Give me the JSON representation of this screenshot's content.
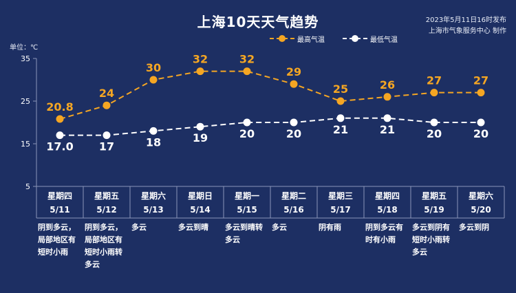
{
  "title": "上海10天天气趋势",
  "publish": {
    "line1": "2023年5月11日16时发布",
    "line2": "上海市气象服务中心 制作"
  },
  "unit": "单位：℃",
  "legend": {
    "high": "最高气温",
    "low": "最低气温"
  },
  "colors": {
    "background": "#1d2f63",
    "high": "#f5a623",
    "low": "#ffffff",
    "grid": "#8a96b8"
  },
  "chart_data": {
    "type": "line",
    "title": "上海10天天气趋势",
    "ylabel": "单位：℃",
    "ylim": [
      5,
      35
    ],
    "yticks": [
      5,
      15,
      25,
      35
    ],
    "grid": false,
    "legend_position": "top-right",
    "categories": [
      "5/11",
      "5/12",
      "5/13",
      "5/14",
      "5/15",
      "5/16",
      "5/17",
      "5/18",
      "5/19",
      "5/20"
    ],
    "series": [
      {
        "name": "最高气温",
        "values": [
          20.8,
          24,
          30,
          32,
          32,
          29,
          25,
          26,
          27,
          27
        ],
        "labels": [
          "20.8",
          "24",
          "30",
          "32",
          "32",
          "29",
          "25",
          "26",
          "27",
          "27"
        ]
      },
      {
        "name": "最低气温",
        "values": [
          17.0,
          17,
          18,
          19,
          20,
          20,
          21,
          21,
          20,
          20
        ],
        "labels": [
          "17.0",
          "17",
          "18",
          "19",
          "20",
          "20",
          "21",
          "21",
          "20",
          "20"
        ]
      }
    ]
  },
  "days": [
    {
      "weekday": "星期四",
      "date": "5/11",
      "weather": [
        "阴到多云，",
        "局部地区有",
        "短时小雨"
      ]
    },
    {
      "weekday": "星期五",
      "date": "5/12",
      "weather": [
        "阴到多云，",
        "局部地区有",
        "短时小雨转",
        "多云"
      ]
    },
    {
      "weekday": "星期六",
      "date": "5/13",
      "weather": [
        "多云"
      ]
    },
    {
      "weekday": "星期日",
      "date": "5/14",
      "weather": [
        "多云到晴"
      ]
    },
    {
      "weekday": "星期一",
      "date": "5/15",
      "weather": [
        "多云到晴转",
        "多云"
      ]
    },
    {
      "weekday": "星期二",
      "date": "5/16",
      "weather": [
        "多云"
      ]
    },
    {
      "weekday": "星期三",
      "date": "5/17",
      "weather": [
        "阴有雨"
      ]
    },
    {
      "weekday": "星期四",
      "date": "5/18",
      "weather": [
        "阴到多云有",
        "时有小雨"
      ]
    },
    {
      "weekday": "星期五",
      "date": "5/19",
      "weather": [
        "多云到阴有",
        "短时小雨转",
        "多云"
      ]
    },
    {
      "weekday": "星期六",
      "date": "5/20",
      "weather": [
        "多云到阴"
      ]
    }
  ]
}
